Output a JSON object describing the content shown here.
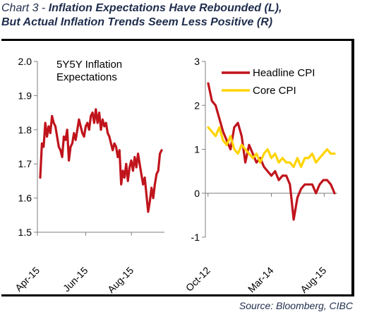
{
  "header": {
    "title_prefix": "Chart 3 - ",
    "title_line1": "Inflation Expectations Have Rebounded (L),",
    "title_line2": "But Actual Inflation Trends Seem Less Positive (R)"
  },
  "source": "Source:  Bloomberg, CIBC",
  "colors": {
    "headline": "#c0141c",
    "core": "#ffd400"
  },
  "chart_data": [
    {
      "type": "line",
      "annotation": [
        "5Y5Y Inflation",
        "Expectations"
      ],
      "ylim": [
        1.5,
        2.0
      ],
      "yticks": [
        "2.0",
        "1.9",
        "1.8",
        "1.7",
        "1.6",
        "1.5"
      ],
      "xticks": [
        "Apr-15",
        "Jun-15",
        "Aug-15"
      ],
      "series": [
        {
          "values": [
            1.66,
            1.76,
            1.75,
            1.82,
            1.78,
            1.81,
            1.79,
            1.84,
            1.82,
            1.81,
            1.78,
            1.75,
            1.74,
            1.72,
            1.78,
            1.77,
            1.8,
            1.71,
            1.75,
            1.76,
            1.79,
            1.77,
            1.8,
            1.83,
            1.81,
            1.79,
            1.78,
            1.81,
            1.82,
            1.8,
            1.84,
            1.85,
            1.82,
            1.86,
            1.82,
            1.85,
            1.8,
            1.83,
            1.81,
            1.82,
            1.79,
            1.78,
            1.76,
            1.74,
            1.76,
            1.75,
            1.72,
            1.74,
            1.64,
            1.68,
            1.66,
            1.7,
            1.65,
            1.69,
            1.71,
            1.68,
            1.72,
            1.69,
            1.73,
            1.7,
            1.67,
            1.64,
            1.66,
            1.61,
            1.56,
            1.59,
            1.63,
            1.6,
            1.64,
            1.67,
            1.68,
            1.73,
            1.74
          ]
        }
      ]
    },
    {
      "type": "line",
      "ylim": [
        -1,
        3
      ],
      "yticks": [
        "3",
        "2",
        "1",
        "0",
        "-1"
      ],
      "xticks": [
        "Oct-12",
        "Mar-14",
        "Aug-15"
      ],
      "legend_position": "top-right",
      "series": [
        {
          "name": "Headline CPI",
          "values": [
            2.5,
            2.1,
            2.0,
            1.7,
            1.4,
            1.2,
            1.0,
            1.5,
            1.6,
            1.3,
            0.7,
            1.1,
            0.9,
            0.7,
            0.8,
            0.6,
            0.5,
            0.4,
            0.5,
            0.3,
            0.4,
            0.4,
            0.2,
            -0.6,
            -0.1,
            0.1,
            0.2,
            0.2,
            0.2,
            0.0,
            0.2,
            0.3,
            0.3,
            0.2,
            0.0
          ]
        },
        {
          "name": "Core CPI",
          "values": [
            1.5,
            1.4,
            1.3,
            1.5,
            1.2,
            1.1,
            1.3,
            1.0,
            0.9,
            1.1,
            1.0,
            0.9,
            0.8,
            0.9,
            0.7,
            0.9,
            1.0,
            0.8,
            0.9,
            0.7,
            0.8,
            0.7,
            0.7,
            0.6,
            0.8,
            0.6,
            0.8,
            0.8,
            0.9,
            0.7,
            0.8,
            0.9,
            1.0,
            0.9,
            0.9
          ]
        }
      ]
    }
  ]
}
